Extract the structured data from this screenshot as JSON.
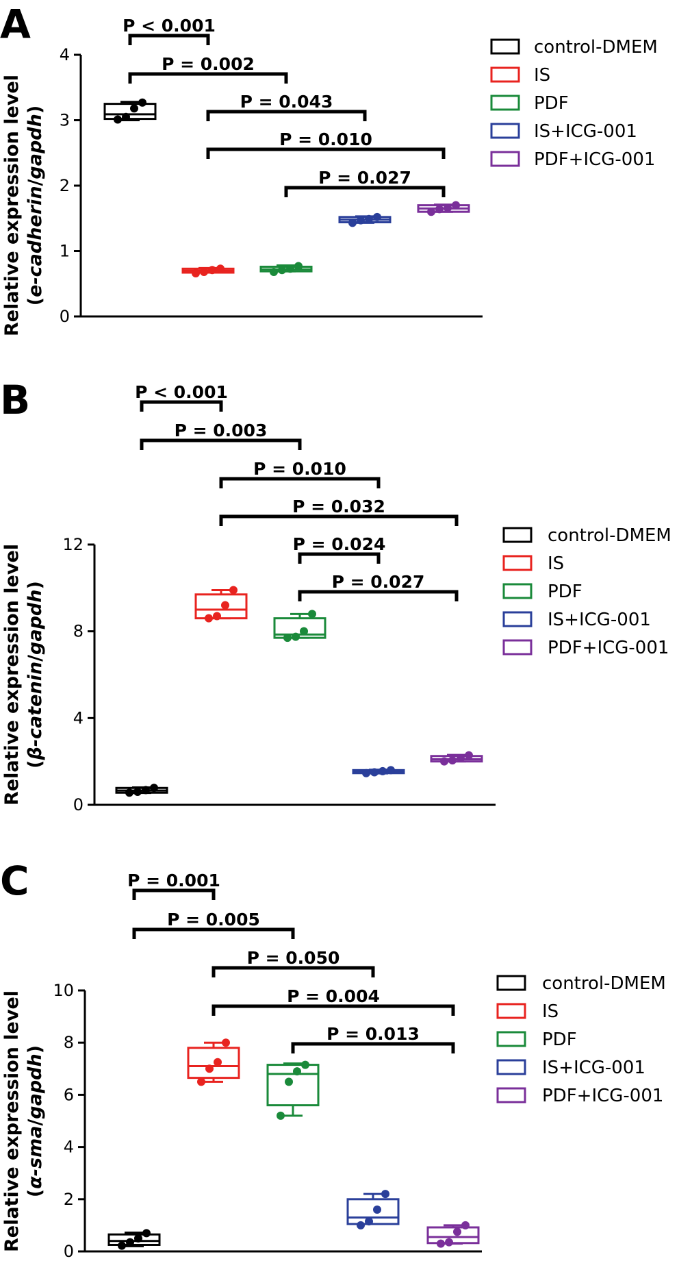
{
  "figure": {
    "legend": [
      {
        "name": "control-DMEM",
        "color": "#000000"
      },
      {
        "name": "IS",
        "color": "#e8231f"
      },
      {
        "name": "PDF",
        "color": "#1a8a3a"
      },
      {
        "name": "IS+ICG-001",
        "color": "#2a3f9a"
      },
      {
        "name": "PDF+ICG-001",
        "color": "#7a2f9a"
      }
    ]
  },
  "chart_data": [
    {
      "type": "box",
      "panel": "A",
      "ylabel_line1": "Relative expression level",
      "ylabel_pre": "(",
      "ylabel_gene": "e-cadherin",
      "ylabel_sep": "/",
      "ylabel_ref": "gapdh",
      "ylabel_post": ")",
      "ylim": [
        0,
        4
      ],
      "yticks": [
        0,
        1,
        2,
        3,
        4
      ],
      "categories": [
        "control-DMEM",
        "IS",
        "PDF",
        "IS+ICG-001",
        "PDF+ICG-001"
      ],
      "boxes": [
        {
          "group": "control-DMEM",
          "min": 3.0,
          "q1": 3.02,
          "median": 3.09,
          "q3": 3.25,
          "max": 3.28,
          "points": [
            3.01,
            3.05,
            3.18,
            3.27
          ]
        },
        {
          "group": "IS",
          "min": 0.67,
          "q1": 0.67,
          "median": 0.7,
          "q3": 0.73,
          "max": 0.74,
          "points": [
            0.66,
            0.68,
            0.71,
            0.73
          ]
        },
        {
          "group": "PDF",
          "min": 0.69,
          "q1": 0.69,
          "median": 0.72,
          "q3": 0.76,
          "max": 0.78,
          "points": [
            0.68,
            0.71,
            0.73,
            0.77
          ]
        },
        {
          "group": "IS+ICG-001",
          "min": 1.43,
          "q1": 1.44,
          "median": 1.48,
          "q3": 1.52,
          "max": 1.53,
          "points": [
            1.43,
            1.47,
            1.49,
            1.52
          ]
        },
        {
          "group": "PDF+ICG-001",
          "min": 1.6,
          "q1": 1.6,
          "median": 1.65,
          "q3": 1.7,
          "max": 1.71,
          "points": [
            1.6,
            1.64,
            1.66,
            1.7
          ]
        }
      ],
      "comparisons": [
        {
          "from": 0,
          "to": 1,
          "label": "P < 0.001"
        },
        {
          "from": 0,
          "to": 2,
          "label": "P = 0.002"
        },
        {
          "from": 1,
          "to": 3,
          "label": "P = 0.043"
        },
        {
          "from": 1,
          "to": 4,
          "label": "P = 0.010"
        },
        {
          "from": 2,
          "to": 4,
          "label": "P = 0.027"
        }
      ]
    },
    {
      "type": "box",
      "panel": "B",
      "ylabel_line1": "Relative expression level",
      "ylabel_pre": "(",
      "ylabel_gene": "β-catenin",
      "ylabel_sep": "/",
      "ylabel_ref": "gapdh",
      "ylabel_post": ")",
      "ylim": [
        0,
        12
      ],
      "yticks": [
        0,
        4,
        8,
        12
      ],
      "categories": [
        "control-DMEM",
        "IS",
        "PDF",
        "IS+ICG-001",
        "PDF+ICG-001"
      ],
      "boxes": [
        {
          "group": "control-DMEM",
          "min": 0.55,
          "q1": 0.56,
          "median": 0.66,
          "q3": 0.78,
          "max": 0.8,
          "points": [
            0.56,
            0.6,
            0.68,
            0.78
          ]
        },
        {
          "group": "IS",
          "min": 8.6,
          "q1": 8.6,
          "median": 9.0,
          "q3": 9.7,
          "max": 9.9,
          "points": [
            8.6,
            8.7,
            9.2,
            9.9
          ]
        },
        {
          "group": "PDF",
          "min": 7.7,
          "q1": 7.7,
          "median": 7.85,
          "q3": 8.6,
          "max": 8.8,
          "points": [
            7.7,
            7.75,
            8.0,
            8.8
          ]
        },
        {
          "group": "IS+ICG-001",
          "min": 1.45,
          "q1": 1.46,
          "median": 1.52,
          "q3": 1.6,
          "max": 1.62,
          "points": [
            1.46,
            1.5,
            1.55,
            1.6
          ]
        },
        {
          "group": "PDF+ICG-001",
          "min": 2.0,
          "q1": 2.0,
          "median": 2.1,
          "q3": 2.25,
          "max": 2.3,
          "points": [
            2.0,
            2.05,
            2.15,
            2.28
          ]
        }
      ],
      "comparisons": [
        {
          "from": 0,
          "to": 1,
          "label": "P < 0.001"
        },
        {
          "from": 0,
          "to": 2,
          "label": "P = 0.003"
        },
        {
          "from": 1,
          "to": 3,
          "label": "P = 0.010"
        },
        {
          "from": 1,
          "to": 4,
          "label": "P = 0.032"
        },
        {
          "from": 2,
          "to": 3,
          "label": "P = 0.024"
        },
        {
          "from": 2,
          "to": 4,
          "label": "P = 0.027"
        }
      ]
    },
    {
      "type": "box",
      "panel": "C",
      "ylabel_line1": "Relative expression level",
      "ylabel_pre": "(",
      "ylabel_gene": "α-sma",
      "ylabel_sep": "/",
      "ylabel_ref": "gapdh",
      "ylabel_post": ")",
      "ylim": [
        0,
        10
      ],
      "yticks": [
        0,
        2,
        4,
        6,
        8,
        10
      ],
      "categories": [
        "control-DMEM",
        "IS",
        "PDF",
        "IS+ICG-001",
        "PDF+ICG-001"
      ],
      "boxes": [
        {
          "group": "control-DMEM",
          "min": 0.2,
          "q1": 0.25,
          "median": 0.4,
          "q3": 0.65,
          "max": 0.72,
          "points": [
            0.22,
            0.35,
            0.5,
            0.7
          ]
        },
        {
          "group": "IS",
          "min": 6.5,
          "q1": 6.65,
          "median": 7.1,
          "q3": 7.8,
          "max": 8.0,
          "points": [
            6.5,
            7.0,
            7.25,
            8.0
          ]
        },
        {
          "group": "PDF",
          "min": 5.2,
          "q1": 5.6,
          "median": 6.8,
          "q3": 7.15,
          "max": 7.2,
          "points": [
            5.2,
            6.5,
            6.9,
            7.15
          ]
        },
        {
          "group": "IS+ICG-001",
          "min": 1.05,
          "q1": 1.05,
          "median": 1.3,
          "q3": 2.0,
          "max": 2.2,
          "points": [
            1.0,
            1.15,
            1.6,
            2.2
          ]
        },
        {
          "group": "PDF+ICG-001",
          "min": 0.3,
          "q1": 0.32,
          "median": 0.55,
          "q3": 0.92,
          "max": 1.0,
          "points": [
            0.3,
            0.35,
            0.75,
            1.0
          ]
        }
      ],
      "comparisons": [
        {
          "from": 0,
          "to": 1,
          "label": "P = 0.001"
        },
        {
          "from": 0,
          "to": 2,
          "label": "P = 0.005"
        },
        {
          "from": 1,
          "to": 3,
          "label": "P = 0.050"
        },
        {
          "from": 1,
          "to": 4,
          "label": "P = 0.004"
        },
        {
          "from": 2,
          "to": 4,
          "label": "P = 0.013"
        }
      ]
    }
  ]
}
